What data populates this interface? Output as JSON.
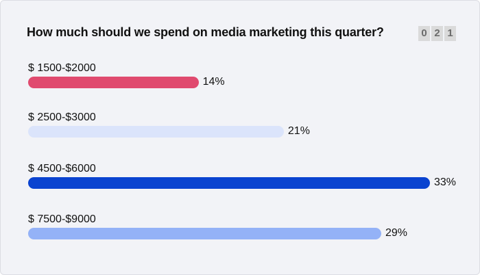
{
  "poll": {
    "question": "How much should we spend on media marketing this quarter?",
    "counter": [
      "0",
      "2",
      "1"
    ],
    "options": [
      {
        "label": "$ 1500-$2000",
        "percent_label": "14%",
        "value": 14,
        "color": "#e04a6f"
      },
      {
        "label": "$ 2500-$3000",
        "percent_label": "21%",
        "value": 21,
        "color": "#dbe4fb"
      },
      {
        "label": "$ 4500-$6000",
        "percent_label": "33%",
        "value": 33,
        "color": "#0a43d0"
      },
      {
        "label": "$ 7500-$9000",
        "percent_label": "29%",
        "value": 29,
        "color": "#94b2f7"
      }
    ]
  }
}
